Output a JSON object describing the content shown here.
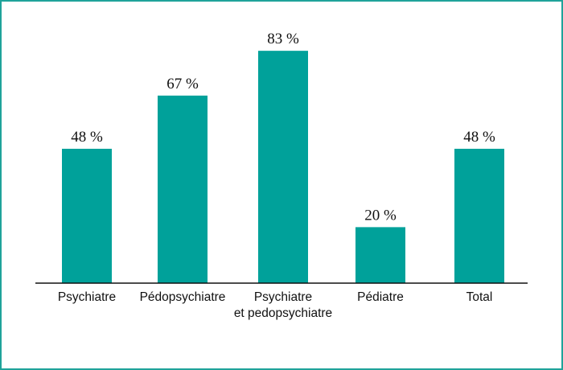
{
  "chart_data": {
    "type": "bar",
    "categories": [
      [
        "Psychiatre"
      ],
      [
        "Pédopsychiatre"
      ],
      [
        "Psychiatre",
        "et pedopsychiatre"
      ],
      [
        "Pédiatre"
      ],
      [
        "Total"
      ]
    ],
    "values": [
      48,
      67,
      83,
      20,
      48
    ],
    "data_labels": [
      "48 %",
      "67 %",
      "83 %",
      "20 %",
      "48 %"
    ],
    "ylim": [
      0,
      100
    ],
    "grid": false,
    "legend": "none",
    "bar_color": "#00a19a",
    "axis_color": "#111111",
    "frame_color": "#1fa39a"
  }
}
